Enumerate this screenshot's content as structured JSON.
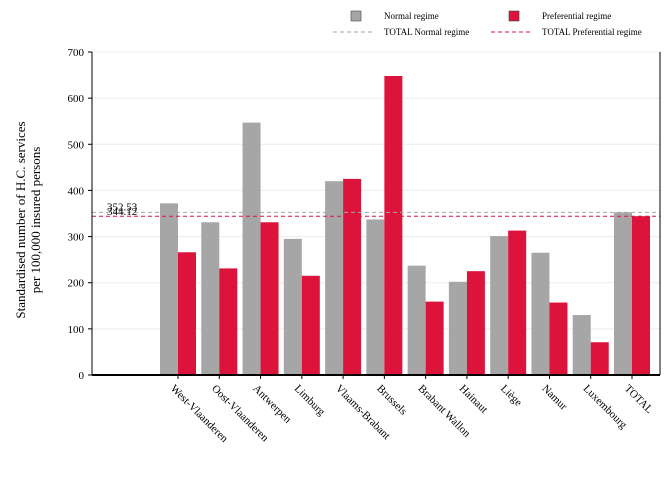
{
  "chart_data": {
    "type": "bar",
    "title": "",
    "ylabel": [
      "Standardised number of H.C. services",
      "per 100,000 insured persons"
    ],
    "xlabel": "",
    "categories": [
      "West-Vlaanderen",
      "Oost-Vlaanderen",
      "Antwerpen",
      "Limburg",
      "Vlaams-Brabant",
      "Brussels",
      "Brabant Wallon",
      "Hainaut",
      "Liège",
      "Namur",
      "Luxembourg",
      "TOTAL"
    ],
    "series": [
      {
        "name": "Normal regime",
        "color": "#a6a6a6",
        "values": [
          372,
          331,
          547,
          295,
          420,
          337,
          237,
          202,
          301,
          265,
          130,
          352.53
        ]
      },
      {
        "name": "Preferential regime",
        "color": "#dc143c",
        "values": [
          266,
          231,
          331,
          215,
          425,
          648,
          159,
          225,
          313,
          157,
          71,
          344.12
        ]
      }
    ],
    "reference_lines": [
      {
        "name": "TOTAL Normal regime",
        "value": 352.53,
        "label": "352.53",
        "color": "#a6a6a6",
        "style": "dashed"
      },
      {
        "name": "TOTAL Preferential regime",
        "value": 344.12,
        "label": "344.12",
        "color": "#dc143c",
        "style": "dashed"
      }
    ],
    "ylim": [
      0,
      700
    ],
    "yticks": [
      0,
      100,
      200,
      300,
      400,
      500,
      600,
      700
    ],
    "grid": true,
    "legend_position": "top-right"
  }
}
